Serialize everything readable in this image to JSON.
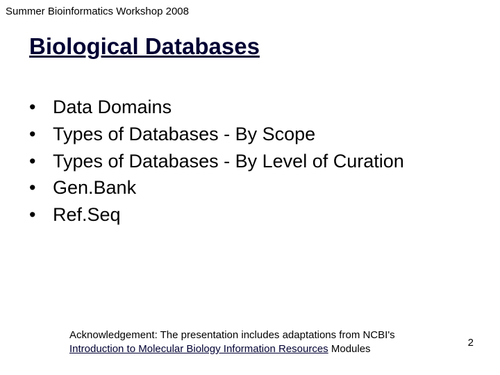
{
  "header": "Summer Bioinformatics Workshop 2008",
  "title": "Biological Databases",
  "bullets": [
    "Data Domains",
    "Types of Databases - By Scope",
    "Types of Databases - By Level of Curation",
    "Gen.Bank",
    "Ref.Seq"
  ],
  "ack_prefix": "Acknowledgement: The presentation includes adaptations from NCBI's ",
  "ack_link": "Introduction to Molecular Biology Information Resources",
  "ack_suffix": " Modules",
  "page_number": "2",
  "colors": {
    "background": "#ffffff",
    "text": "#000000",
    "title": "#000033",
    "link": "#000033"
  },
  "fonts": {
    "header_size": 15,
    "title_size": 33,
    "bullet_size": 27,
    "ack_size": 15
  }
}
